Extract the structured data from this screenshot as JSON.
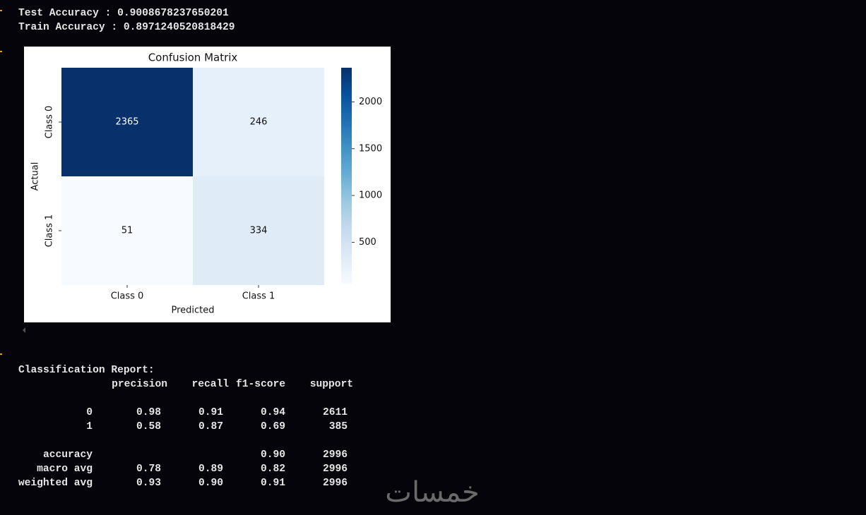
{
  "output": {
    "lines": [
      "Test Accuracy : 0.9008678237650201",
      "Train Accuracy : 0.8971240520818429"
    ]
  },
  "chart_data": {
    "type": "heatmap",
    "title": "Confusion Matrix",
    "xlabel": "Predicted",
    "ylabel": "Actual",
    "x": [
      "Class 0",
      "Class 1"
    ],
    "y": [
      "Class 0",
      "Class 1"
    ],
    "values": [
      [
        2365,
        246
      ],
      [
        51,
        334
      ]
    ],
    "cmap": "Blues",
    "clim": [
      51,
      2365
    ],
    "cticks": [
      500,
      1000,
      1500,
      2000
    ]
  },
  "report": {
    "title": "Classification Report:",
    "header": [
      "precision",
      "recall",
      "f1-score",
      "support"
    ],
    "rows": [
      [
        "0",
        "0.98",
        "0.91",
        "0.94",
        "2611"
      ],
      [
        "1",
        "0.58",
        "0.87",
        "0.69",
        "385"
      ],
      [
        "accuracy",
        null,
        null,
        "0.90",
        "2996"
      ],
      [
        "macro avg",
        "0.78",
        "0.89",
        "0.82",
        "2996"
      ],
      [
        "weighted avg",
        "0.93",
        "0.90",
        "0.91",
        "2996"
      ]
    ]
  },
  "watermark": "خمسات"
}
